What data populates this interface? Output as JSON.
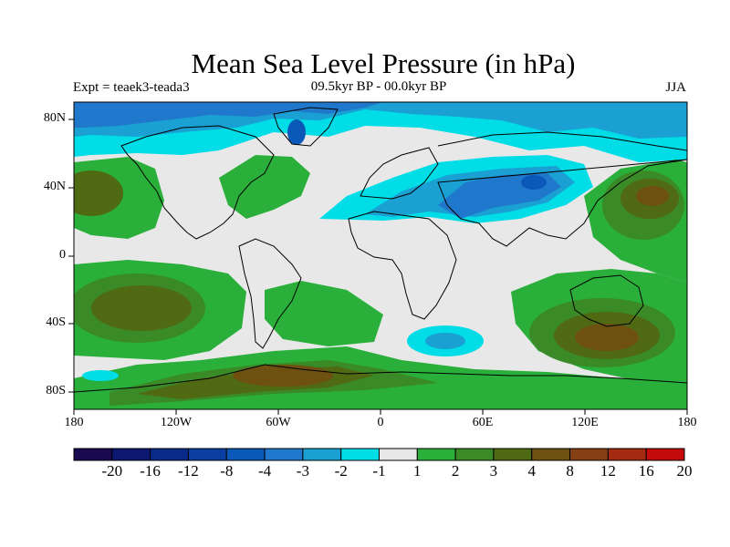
{
  "title": "Mean Sea Level Pressure (in hPa)",
  "experiment": "Expt = teaek3-teada3",
  "period": "09.5kyr BP - 00.0kyr BP",
  "season": "JJA",
  "lat_labels": [
    "80N",
    "40N",
    "0",
    "40S",
    "80S"
  ],
  "lon_labels": [
    "180",
    "120W",
    "60W",
    "0",
    "60E",
    "120E",
    "180"
  ],
  "colorbar": {
    "labels": [
      "-20",
      "-16",
      "-12",
      "-8",
      "-4",
      "-3",
      "-2",
      "-1",
      "1",
      "2",
      "3",
      "4",
      "8",
      "12",
      "16",
      "20"
    ],
    "colors": [
      "#1a0a52",
      "#0d1870",
      "#0a2a8a",
      "#0a3ea0",
      "#0a58b8",
      "#1f78cc",
      "#1aa0d2",
      "#00dde6",
      "#e8e8e8",
      "#2aaf3a",
      "#3a8a28",
      "#506a14",
      "#6e5010",
      "#864014",
      "#a42a10",
      "#c40a0a"
    ]
  },
  "field_colors": {
    "neutral": "#e8e8e8",
    "pos1": "#2aaf3a",
    "pos2": "#3a8a28",
    "pos3": "#506a14",
    "pos4": "#6e5010",
    "neg1": "#00dde6",
    "neg2": "#1aa0d2",
    "neg3": "#1f78cc",
    "neg4": "#0a58b8"
  }
}
